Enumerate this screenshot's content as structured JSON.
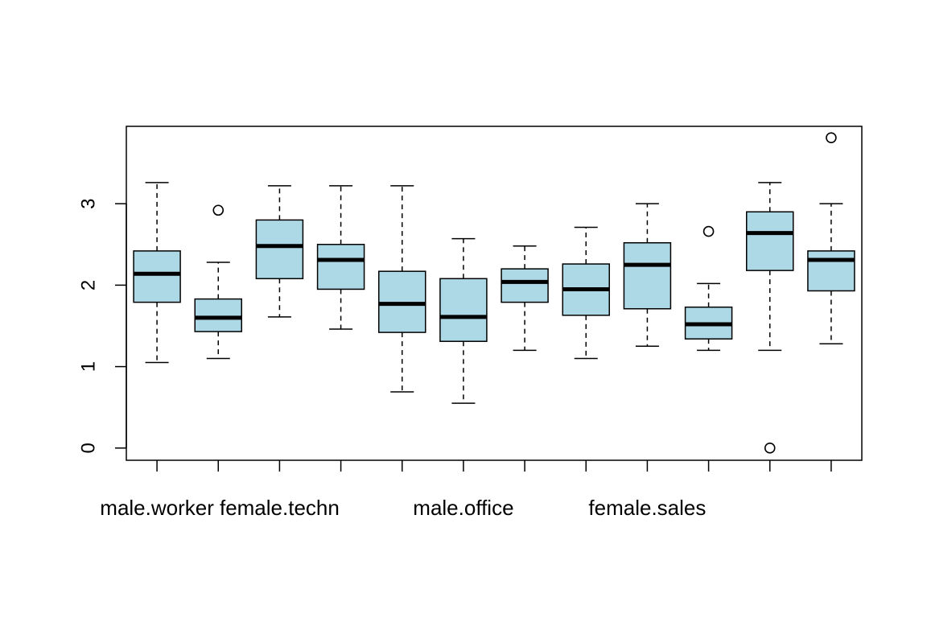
{
  "chart_data": {
    "type": "boxplot",
    "title": "",
    "xlabel": "",
    "ylabel": "",
    "ylim": [
      -0.15,
      3.95
    ],
    "y_ticks": [
      0,
      1,
      2,
      3
    ],
    "fill_color": "#add8e6",
    "categories_printed": [
      "male.worker",
      "",
      "female.techn",
      "",
      "",
      "male.office",
      "",
      "",
      "female.sales",
      "",
      "",
      ""
    ],
    "boxes": [
      {
        "whisker_low": 1.05,
        "q1": 1.79,
        "median": 2.14,
        "q3": 2.42,
        "whisker_high": 3.26,
        "outliers": []
      },
      {
        "whisker_low": 1.1,
        "q1": 1.43,
        "median": 1.6,
        "q3": 1.83,
        "whisker_high": 2.28,
        "outliers": [
          2.92
        ]
      },
      {
        "whisker_low": 1.61,
        "q1": 2.08,
        "median": 2.48,
        "q3": 2.8,
        "whisker_high": 3.22,
        "outliers": []
      },
      {
        "whisker_low": 1.46,
        "q1": 1.95,
        "median": 2.31,
        "q3": 2.5,
        "whisker_high": 3.22,
        "outliers": []
      },
      {
        "whisker_low": 0.69,
        "q1": 1.42,
        "median": 1.77,
        "q3": 2.17,
        "whisker_high": 3.22,
        "outliers": []
      },
      {
        "whisker_low": 0.55,
        "q1": 1.31,
        "median": 1.61,
        "q3": 2.08,
        "whisker_high": 2.57,
        "outliers": []
      },
      {
        "whisker_low": 1.2,
        "q1": 1.79,
        "median": 2.04,
        "q3": 2.2,
        "whisker_high": 2.48,
        "outliers": []
      },
      {
        "whisker_low": 1.1,
        "q1": 1.63,
        "median": 1.95,
        "q3": 2.26,
        "whisker_high": 2.71,
        "outliers": []
      },
      {
        "whisker_low": 1.25,
        "q1": 1.71,
        "median": 2.25,
        "q3": 2.52,
        "whisker_high": 3.0,
        "outliers": []
      },
      {
        "whisker_low": 1.2,
        "q1": 1.34,
        "median": 1.52,
        "q3": 1.73,
        "whisker_high": 2.02,
        "outliers": [
          2.66
        ]
      },
      {
        "whisker_low": 1.2,
        "q1": 2.18,
        "median": 2.64,
        "q3": 2.9,
        "whisker_high": 3.26,
        "outliers": [
          0.0
        ]
      },
      {
        "whisker_low": 1.28,
        "q1": 1.93,
        "median": 2.31,
        "q3": 2.42,
        "whisker_high": 3.0,
        "outliers": [
          3.81
        ]
      }
    ]
  }
}
